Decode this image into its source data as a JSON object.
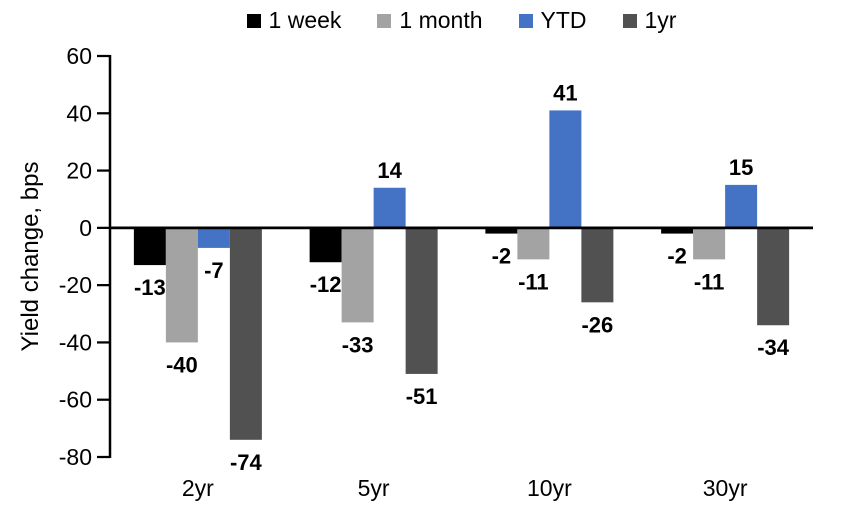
{
  "chart_data": {
    "type": "bar",
    "title": "",
    "ylabel": "Yield change, bps",
    "xlabel": "",
    "categories": [
      "2yr",
      "5yr",
      "10yr",
      "30yr"
    ],
    "series": [
      {
        "name": "1 week",
        "color": "#000000",
        "values": [
          -13,
          -12,
          -2,
          -2
        ]
      },
      {
        "name": "1 month",
        "color": "#A3A3A3",
        "values": [
          -40,
          -33,
          -11,
          -11
        ]
      },
      {
        "name": "YTD",
        "color": "#4472C4",
        "values": [
          -7,
          14,
          41,
          15
        ]
      },
      {
        "name": "1yr",
        "color": "#515151",
        "values": [
          -74,
          -51,
          -26,
          -34
        ]
      }
    ],
    "ylim": [
      -80,
      60
    ],
    "yticks": [
      60,
      40,
      20,
      0,
      -20,
      -40,
      -60,
      -80
    ],
    "grid": false,
    "legend_position": "top",
    "data_labels": true,
    "axis_color": "#000000",
    "text_color": "#000000"
  }
}
